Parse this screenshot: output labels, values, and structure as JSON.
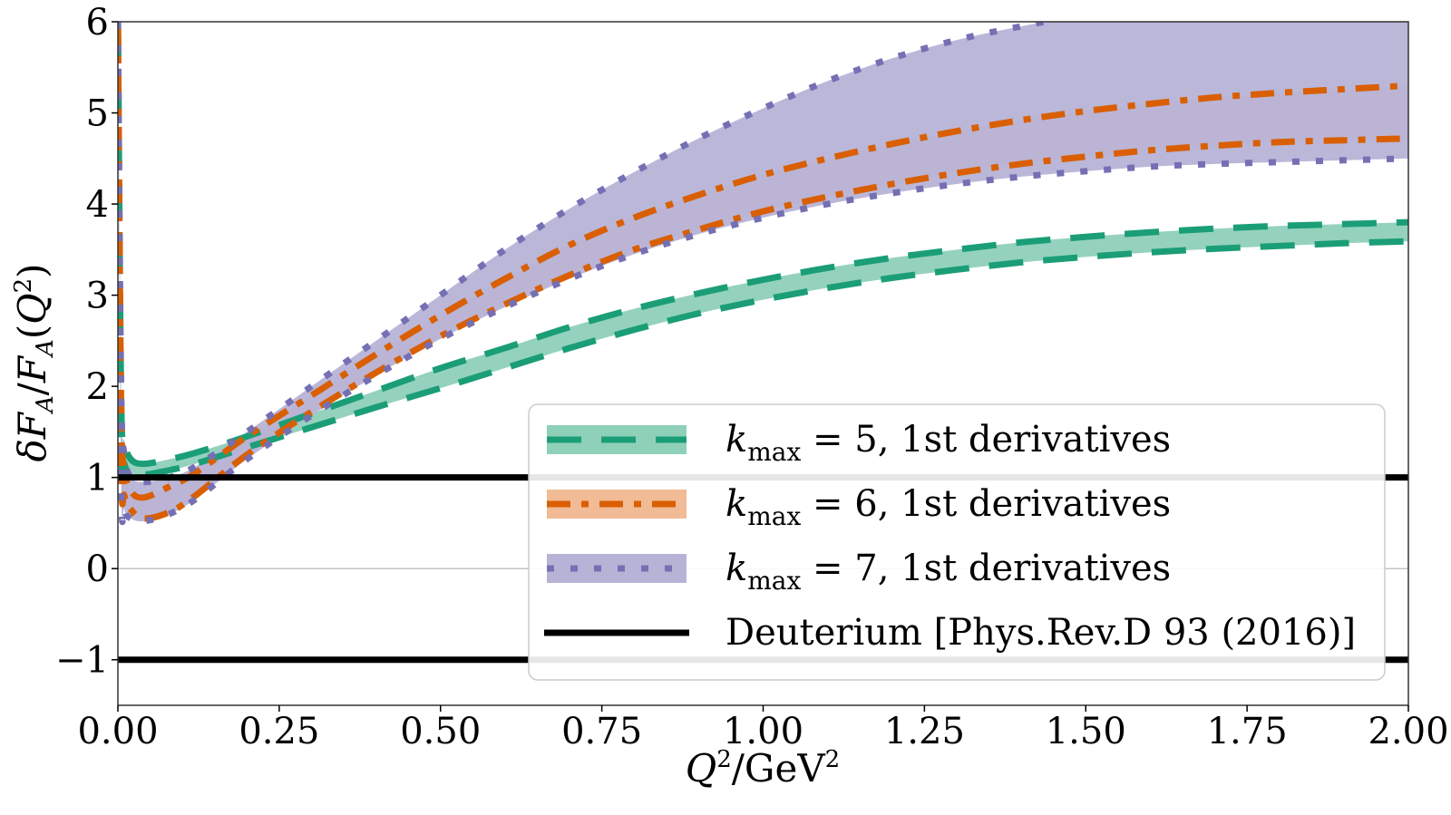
{
  "chart_data": {
    "type": "line",
    "title": "",
    "xlabel": "Q^2/GeV^2",
    "ylabel": "δF_A/F_A(Q^2)",
    "xlim": [
      0,
      2.0
    ],
    "ylim": [
      -1.5,
      6
    ],
    "x_ticks": [
      "0.00",
      "0.25",
      "0.50",
      "0.75",
      "1.00",
      "1.25",
      "1.50",
      "1.75",
      "2.00"
    ],
    "x_tick_values": [
      0,
      0.25,
      0.5,
      0.75,
      1.0,
      1.25,
      1.5,
      1.75,
      2.0
    ],
    "y_ticks": [
      "−1",
      "0",
      "1",
      "2",
      "3",
      "4",
      "5",
      "6"
    ],
    "y_tick_values": [
      -1,
      0,
      1,
      2,
      3,
      4,
      5,
      6
    ],
    "grid": false,
    "zero_line": true,
    "legend_position": "lower-right",
    "x": [
      0.0,
      0.005,
      0.01,
      0.02,
      0.04,
      0.08,
      0.12,
      0.2,
      0.3,
      0.4,
      0.5,
      0.6,
      0.7,
      0.8,
      0.9,
      1.0,
      1.1,
      1.2,
      1.3,
      1.4,
      1.5,
      1.6,
      1.7,
      1.8,
      1.9,
      2.0
    ],
    "series": [
      {
        "name": "k_max = 5, 1st derivatives",
        "legend_main": "k",
        "legend_sub": "max",
        "legend_rest": " = 5, 1st derivatives",
        "color": "#1b9e77",
        "fill": "#8fd0b9",
        "linestyle": "dashed",
        "upper": [
          6.0,
          1.9,
          1.4,
          1.2,
          1.15,
          1.2,
          1.27,
          1.45,
          1.7,
          1.95,
          2.2,
          2.42,
          2.65,
          2.85,
          3.02,
          3.17,
          3.3,
          3.41,
          3.5,
          3.58,
          3.64,
          3.69,
          3.73,
          3.76,
          3.78,
          3.8
        ],
        "lower": [
          6.0,
          1.5,
          1.15,
          1.05,
          1.03,
          1.08,
          1.15,
          1.33,
          1.55,
          1.77,
          1.98,
          2.2,
          2.42,
          2.62,
          2.8,
          2.95,
          3.08,
          3.19,
          3.28,
          3.36,
          3.42,
          3.47,
          3.51,
          3.54,
          3.57,
          3.59
        ]
      },
      {
        "name": "k_max = 6, 1st derivatives",
        "legend_main": "k",
        "legend_sub": "max",
        "legend_rest": " = 6, 1st derivatives",
        "color": "#d95f02",
        "fill": "#eeaa7b",
        "linestyle": "dashdot",
        "upper": [
          6.0,
          1.8,
          1.1,
          0.85,
          0.78,
          0.9,
          1.05,
          1.45,
          1.9,
          2.35,
          2.78,
          3.18,
          3.55,
          3.85,
          4.1,
          4.32,
          4.5,
          4.66,
          4.8,
          4.92,
          5.02,
          5.1,
          5.17,
          5.22,
          5.26,
          5.3
        ],
        "lower": [
          6.0,
          1.2,
          0.8,
          0.65,
          0.55,
          0.62,
          0.8,
          1.25,
          1.72,
          2.15,
          2.55,
          2.9,
          3.22,
          3.5,
          3.72,
          3.92,
          4.08,
          4.22,
          4.34,
          4.44,
          4.52,
          4.59,
          4.64,
          4.68,
          4.7,
          4.72
        ]
      },
      {
        "name": "k_max = 7, 1st derivatives",
        "legend_main": "k",
        "legend_sub": "max",
        "legend_rest": " = 7, 1st derivatives",
        "color": "#7570b3",
        "fill": "#b7b3d7",
        "linestyle": "dotted",
        "upper": [
          6.0,
          2.0,
          1.25,
          1.0,
          0.95,
          1.0,
          1.12,
          1.5,
          2.0,
          2.5,
          3.0,
          3.5,
          3.95,
          4.35,
          4.72,
          5.05,
          5.35,
          5.6,
          5.8,
          5.95,
          6.08,
          6.18,
          6.26,
          6.32,
          6.36,
          6.4
        ],
        "lower": [
          6.0,
          1.0,
          0.65,
          0.55,
          0.52,
          0.6,
          0.76,
          1.2,
          1.68,
          2.12,
          2.52,
          2.87,
          3.18,
          3.45,
          3.67,
          3.85,
          4.0,
          4.12,
          4.22,
          4.3,
          4.36,
          4.41,
          4.44,
          4.46,
          4.48,
          4.5
        ]
      }
    ],
    "reference_lines": {
      "name": "Deuterium [Phys.Rev.D 93 (2016)]",
      "color": "#000000",
      "y_values": [
        1,
        -1
      ]
    }
  }
}
